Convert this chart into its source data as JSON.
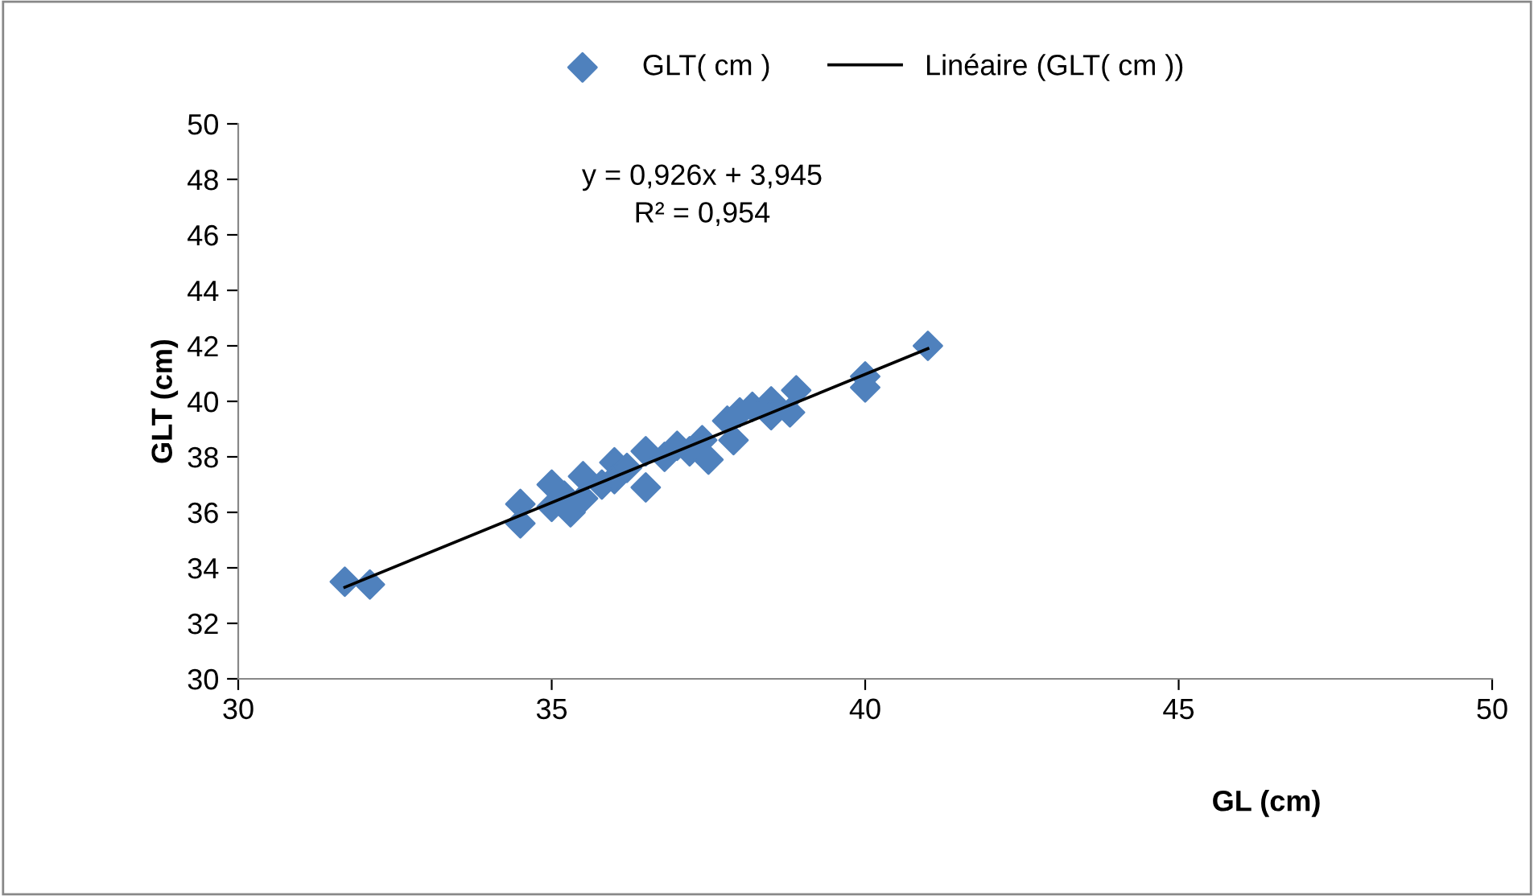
{
  "chart_data": {
    "type": "scatter",
    "xlabel": "GL (cm)",
    "ylabel": "GLT (cm)",
    "xlim": [
      30,
      50
    ],
    "xticks": [
      30,
      35,
      40,
      45,
      50
    ],
    "ylim": [
      30,
      50
    ],
    "yticks": [
      30,
      32,
      34,
      36,
      38,
      40,
      42,
      44,
      46,
      48,
      50
    ],
    "grid": false,
    "legend": "top",
    "annotations": [
      "y = 0,926x + 3,945\nR² = 0,954"
    ],
    "series": [
      {
        "name": "GLT( cm )",
        "marker": "diamond",
        "color": "#4f81bd",
        "x": [
          31.7,
          32.1,
          34.5,
          34.5,
          35,
          35,
          35.2,
          35.3,
          35.5,
          35.5,
          35.8,
          36,
          36,
          36.2,
          36.5,
          36.5,
          36.8,
          37,
          37.2,
          37.4,
          37.5,
          37.8,
          37.9,
          38,
          38.2,
          38.5,
          38.5,
          38.8,
          38.9,
          40,
          40,
          41
        ],
        "values": [
          33.5,
          33.4,
          36.3,
          35.6,
          37,
          36.2,
          36.6,
          36,
          37.3,
          36.5,
          37,
          37.8,
          37.2,
          37.6,
          38.2,
          36.9,
          38,
          38.4,
          38.2,
          38.6,
          37.9,
          39.3,
          38.6,
          39.6,
          39.8,
          40,
          39.5,
          39.6,
          40.4,
          40.9,
          40.5,
          42
        ]
      },
      {
        "name": "Linéaire (GLT( cm ))",
        "type": "line",
        "marker": "none",
        "color": "#000000",
        "x": [
          31.7,
          41
        ],
        "values": [
          33.3,
          41.9
        ]
      }
    ]
  }
}
